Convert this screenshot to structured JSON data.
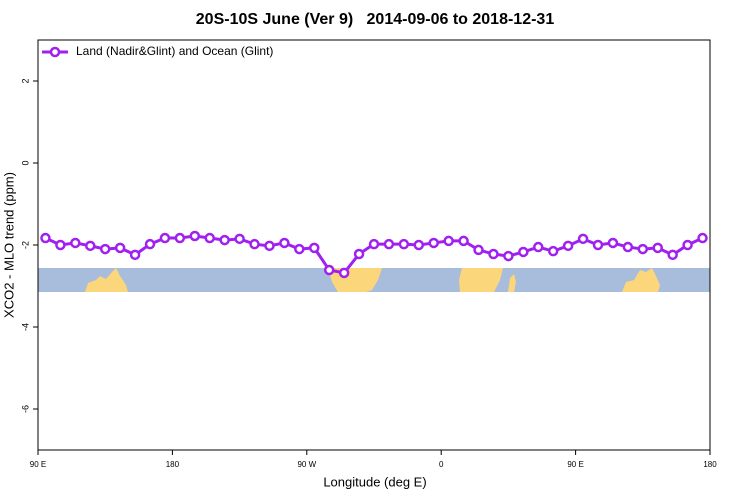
{
  "chart_data": {
    "type": "line",
    "title": "20S-10S June (Ver 9)   2014-09-06 to 2018-12-31",
    "x_label": "Longitude (deg E)",
    "y_label": "XCO2 - MLO trend (ppm)",
    "x": [
      95,
      105,
      115,
      125,
      135,
      145,
      155,
      165,
      175,
      185,
      195,
      205,
      215,
      225,
      235,
      245,
      255,
      265,
      275,
      285,
      295,
      305,
      315,
      325,
      335,
      345,
      355,
      365,
      375,
      385,
      395,
      405,
      415,
      425,
      435,
      445,
      455,
      465,
      475,
      485,
      495,
      505,
      515,
      525,
      535
    ],
    "series": [
      {
        "name": "Land (Nadir&Glint) and Ocean (Glint)",
        "color": "#a020f0",
        "values": [
          -1.83,
          -2.0,
          -1.95,
          -2.02,
          -2.1,
          -2.07,
          -2.24,
          -1.98,
          -1.83,
          -1.83,
          -1.78,
          -1.83,
          -1.88,
          -1.85,
          -1.98,
          -2.02,
          -1.95,
          -2.1,
          -2.07,
          -2.61,
          -2.68,
          -2.22,
          -1.98,
          -1.98,
          -1.98,
          -2.0,
          -1.95,
          -1.9,
          -1.9,
          -2.12,
          -2.22,
          -2.27,
          -2.17,
          -2.05,
          -2.15,
          -2.02,
          -1.85,
          -2.0,
          -1.95,
          -2.05,
          -2.1,
          -2.07,
          -2.24,
          -2.0,
          -1.83
        ]
      }
    ],
    "xlim": [
      90,
      540
    ],
    "xticks": [
      {
        "value": 90,
        "label": "90 E"
      },
      180,
      {
        "value": 270,
        "label": "90 W"
      },
      {
        "value": 360,
        "label": "0"
      },
      {
        "value": 450,
        "label": "90 E"
      },
      {
        "value": 540,
        "label": "180"
      }
    ],
    "ylim": [
      -7,
      3
    ],
    "yticks": [
      -6,
      -4,
      -2,
      0,
      2
    ],
    "legend": "top-left"
  }
}
